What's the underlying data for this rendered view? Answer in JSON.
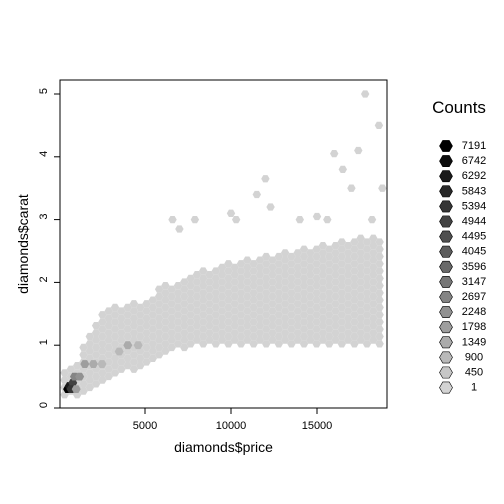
{
  "chart_data": {
    "type": "hexbin",
    "title": "",
    "xlabel": "diamonds$price",
    "ylabel": "diamonds$carat",
    "xlim": [
      326,
      18823
    ],
    "ylim": [
      0.2,
      5.01
    ],
    "x_ticks": [
      5000,
      10000,
      15000
    ],
    "x_tick_labels": [
      "5000",
      "10000",
      "15000"
    ],
    "y_ticks": [
      0,
      1,
      2,
      3,
      4,
      5
    ],
    "y_tick_labels": [
      "0",
      "1",
      "2",
      "3",
      "4",
      "5"
    ],
    "grid": false,
    "legend": {
      "title": "Counts",
      "placement": "right",
      "entries": [
        "7191",
        "6742",
        "6292",
        "5843",
        "5394",
        "4944",
        "4495",
        "4045",
        "3596",
        "3147",
        "2697",
        "2248",
        "1798",
        "1349",
        "900",
        "450",
        "1"
      ]
    },
    "dense_region": [
      {
        "x": 800,
        "y_min": 0.2,
        "y_max": 0.6
      },
      {
        "x": 2000,
        "y_min": 0.3,
        "y_max": 1.3
      },
      {
        "x": 3000,
        "y_min": 0.5,
        "y_max": 1.6
      },
      {
        "x": 4000,
        "y_min": 0.6,
        "y_max": 1.6
      },
      {
        "x": 5000,
        "y_min": 0.7,
        "y_max": 1.7
      },
      {
        "x": 6000,
        "y_min": 0.9,
        "y_max": 1.9
      },
      {
        "x": 7500,
        "y_min": 1.0,
        "y_max": 2.1
      },
      {
        "x": 9000,
        "y_min": 1.0,
        "y_max": 2.2
      },
      {
        "x": 10000,
        "y_min": 1.0,
        "y_max": 2.3
      },
      {
        "x": 12000,
        "y_min": 1.0,
        "y_max": 2.4
      },
      {
        "x": 14000,
        "y_min": 1.0,
        "y_max": 2.5
      },
      {
        "x": 16000,
        "y_min": 1.0,
        "y_max": 2.6
      },
      {
        "x": 18000,
        "y_min": 1.0,
        "y_max": 2.7
      },
      {
        "x": 18823,
        "y_min": 1.0,
        "y_max": 2.7
      }
    ],
    "high_density_bins": [
      {
        "x": 500,
        "y": 0.3,
        "count": 7191
      },
      {
        "x": 600,
        "y": 0.35,
        "count": 6292
      },
      {
        "x": 800,
        "y": 0.4,
        "count": 4944
      },
      {
        "x": 700,
        "y": 0.3,
        "count": 5394
      },
      {
        "x": 900,
        "y": 0.5,
        "count": 2697
      },
      {
        "x": 1200,
        "y": 0.5,
        "count": 2248
      },
      {
        "x": 1500,
        "y": 0.7,
        "count": 1798
      },
      {
        "x": 2000,
        "y": 0.7,
        "count": 1349
      },
      {
        "x": 2500,
        "y": 0.7,
        "count": 900
      },
      {
        "x": 3500,
        "y": 0.9,
        "count": 900
      },
      {
        "x": 4000,
        "y": 1.0,
        "count": 1349
      },
      {
        "x": 4600,
        "y": 1.0,
        "count": 900
      },
      {
        "x": 1000,
        "y": 0.3,
        "count": 1798
      }
    ],
    "outlier_bins": [
      {
        "x": 6600,
        "y": 3.0,
        "count": 1
      },
      {
        "x": 7900,
        "y": 3.0,
        "count": 1
      },
      {
        "x": 10000,
        "y": 3.1,
        "count": 1
      },
      {
        "x": 10300,
        "y": 3.0,
        "count": 1
      },
      {
        "x": 12000,
        "y": 3.65,
        "count": 1
      },
      {
        "x": 11500,
        "y": 3.4,
        "count": 1
      },
      {
        "x": 12300,
        "y": 3.2,
        "count": 1
      },
      {
        "x": 14000,
        "y": 3.0,
        "count": 1
      },
      {
        "x": 15000,
        "y": 3.05,
        "count": 1
      },
      {
        "x": 15600,
        "y": 3.0,
        "count": 1
      },
      {
        "x": 16000,
        "y": 4.05,
        "count": 1
      },
      {
        "x": 16500,
        "y": 3.8,
        "count": 1
      },
      {
        "x": 17000,
        "y": 3.5,
        "count": 1
      },
      {
        "x": 17400,
        "y": 4.1,
        "count": 1
      },
      {
        "x": 17800,
        "y": 5.0,
        "count": 1
      },
      {
        "x": 18600,
        "y": 4.5,
        "count": 1
      },
      {
        "x": 18800,
        "y": 3.5,
        "count": 1
      },
      {
        "x": 18200,
        "y": 3.0,
        "count": 1
      },
      {
        "x": 7000,
        "y": 2.85,
        "count": 1
      }
    ]
  }
}
